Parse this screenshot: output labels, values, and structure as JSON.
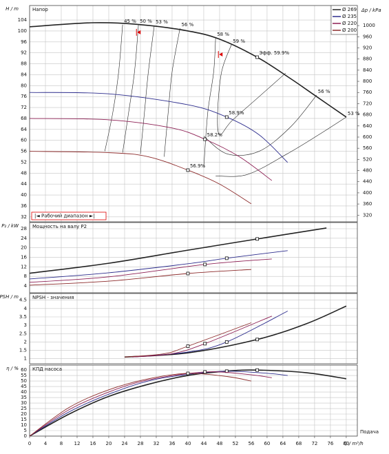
{
  "chart_data": [
    {
      "type": "line",
      "title": "Напор",
      "y_label": "H / m",
      "y2_label": "Δp / kPa",
      "ylim": [
        30.2,
        109.3
      ],
      "yticks": [
        32,
        36,
        40,
        44,
        48,
        52,
        56,
        60,
        64,
        68,
        72,
        76,
        80,
        84,
        88,
        92,
        96,
        100,
        104
      ],
      "y2lim": [
        296,
        1072
      ],
      "y2ticks": [
        320,
        360,
        400,
        440,
        480,
        520,
        560,
        600,
        640,
        680,
        720,
        760,
        800,
        840,
        880,
        920,
        960,
        1000
      ],
      "grid": true,
      "legend": "upper right",
      "series": [
        {
          "name": "Ø 269",
          "color": "#222222",
          "x": [
            0,
            16,
            28,
            40,
            48,
            57.5,
            66,
            72,
            80
          ],
          "values": [
            101.5,
            103,
            102.3,
            100,
            97,
            90.4,
            82.5,
            76.5,
            68.5
          ],
          "point": {
            "x": 57.5,
            "y": 90.4
          },
          "point_label": "Эфф.  59.9%"
        },
        {
          "name": "Ø 235",
          "color": "#2b2b8c",
          "x": [
            0,
            20,
            40,
            49.8,
            58,
            65.2
          ],
          "values": [
            77.5,
            77,
            73,
            68.5,
            62,
            51.9
          ],
          "point": {
            "x": 49.8,
            "y": 68.5
          },
          "point_label": "58.9%"
        },
        {
          "name": "Ø 220",
          "color": "#8c1d52",
          "x": [
            0,
            20,
            36,
            44.3,
            53,
            61.2
          ],
          "values": [
            68,
            67.5,
            64.5,
            60.4,
            54,
            45.3
          ],
          "point": {
            "x": 44.3,
            "y": 60.4
          },
          "point_label": "58.2%"
        },
        {
          "name": "Ø 200",
          "color": "#8c2a2a",
          "x": [
            0,
            20,
            30,
            40,
            48,
            56
          ],
          "values": [
            56,
            55.5,
            54,
            49.1,
            44,
            36.8
          ],
          "point": {
            "x": 40,
            "y": 49.1
          },
          "point_label": "56.9%"
        }
      ],
      "contours": [
        {
          "label": "45 %",
          "x": [
            19,
            21,
            22.5,
            23.5
          ],
          "y": [
            56,
            70,
            85,
            102.3
          ]
        },
        {
          "label": "50 %",
          "x": [
            23.5,
            25,
            26.5,
            27.5
          ],
          "y": [
            55.5,
            70,
            85,
            102.2
          ]
        },
        {
          "label": "53 %",
          "x": [
            28,
            29,
            30,
            31.5
          ],
          "y": [
            55,
            70,
            85,
            102
          ]
        },
        {
          "label": "56 %",
          "x": [
            34,
            35,
            36,
            38
          ],
          "y": [
            54,
            70,
            85,
            101
          ]
        },
        {
          "label": "58 %",
          "x": [
            44,
            45,
            46.5,
            47
          ],
          "y": [
            50,
            70,
            85,
            97.5
          ]
        },
        {
          "label": "59 %",
          "x": [
            64.7,
            58,
            51,
            48,
            47.5,
            48.5,
            51
          ],
          "y": [
            84.6,
            76,
            67,
            62,
            70,
            85,
            95
          ]
        },
        {
          "label": "56 %",
          "x": [
            44,
            50,
            58,
            66,
            72.5
          ],
          "y": [
            61.5,
            55,
            56,
            65,
            76.5
          ]
        },
        {
          "label": "53 %",
          "x": [
            47,
            55,
            65,
            73,
            80
          ],
          "y": [
            47,
            47.5,
            55,
            62,
            68.5
          ]
        }
      ],
      "range_label": "|◄ Рабочий диапазон ►|",
      "range_flags": [
        {
          "x": 27,
          "y": 99.5
        },
        {
          "x": 47.7,
          "y": 91.4
        }
      ]
    },
    {
      "type": "line",
      "title": "Мощность на валу P2",
      "y_label": "P₂ / kW",
      "ylim": [
        1.1,
        30.6
      ],
      "yticks": [
        4,
        8,
        12,
        16,
        20,
        24,
        28
      ],
      "grid": true,
      "series": [
        {
          "color": "#222222",
          "x": [
            0,
            20,
            40,
            57.5,
            75
          ],
          "values": [
            9.3,
            13.5,
            19,
            23.7,
            28.3
          ],
          "point": {
            "x": 57.5,
            "y": 23.7
          }
        },
        {
          "color": "#2b2b8c",
          "x": [
            0,
            20,
            40,
            49.8,
            65.2
          ],
          "values": [
            6.9,
            9.5,
            13.3,
            15.6,
            18.8
          ],
          "point": {
            "x": 49.8,
            "y": 15.6
          }
        },
        {
          "color": "#8c1d52",
          "x": [
            0,
            20,
            44.3,
            61.2
          ],
          "values": [
            5.5,
            7.8,
            13,
            15.3
          ],
          "point": {
            "x": 44.3,
            "y": 13
          }
        },
        {
          "color": "#8c2a2a",
          "x": [
            0,
            20,
            40,
            56
          ],
          "values": [
            4.3,
            6,
            9.2,
            10.9
          ],
          "point": {
            "x": 40,
            "y": 9.2
          }
        }
      ]
    },
    {
      "type": "line",
      "title": "NPSH - значения",
      "y_label": "NPSH / m",
      "ylim": [
        0.7,
        4.9
      ],
      "yticks": [
        1,
        1.5,
        2,
        2.5,
        3,
        3.5,
        4,
        4.5
      ],
      "grid": true,
      "series": [
        {
          "color": "#222222",
          "x": [
            24,
            40,
            57.5,
            70,
            80
          ],
          "values": [
            1.1,
            1.35,
            2.15,
            3.1,
            4.15
          ],
          "point": {
            "x": 57.5,
            "y": 2.15
          }
        },
        {
          "color": "#2b2b8c",
          "x": [
            26,
            40,
            49.8,
            65.2
          ],
          "values": [
            1.1,
            1.4,
            2,
            3.85
          ],
          "point": {
            "x": 49.8,
            "y": 2
          }
        },
        {
          "color": "#8c1d52",
          "x": [
            26,
            36,
            44.3,
            61.2
          ],
          "values": [
            1.1,
            1.3,
            1.9,
            3.55
          ],
          "point": {
            "x": 44.3,
            "y": 1.9
          }
        },
        {
          "color": "#8c2a2a",
          "x": [
            24,
            34,
            40,
            56
          ],
          "values": [
            1.1,
            1.3,
            1.75,
            3.15
          ],
          "point": {
            "x": 40,
            "y": 1.75
          }
        }
      ]
    },
    {
      "type": "line",
      "title": "КПД насоса",
      "y_label": "η / %",
      "x_label": "Q / m³/h",
      "x_caption": "Подача",
      "xlim": [
        0,
        82.8
      ],
      "xticks": [
        0,
        4,
        8,
        12,
        16,
        20,
        24,
        28,
        32,
        36,
        40,
        44,
        48,
        52,
        56,
        60,
        64,
        68,
        72,
        76,
        80
      ],
      "ylim": [
        0,
        64.4
      ],
      "yticks": [
        0,
        5,
        10,
        15,
        20,
        25,
        30,
        35,
        40,
        45,
        50,
        55,
        60
      ],
      "grid": true,
      "series": [
        {
          "color": "#222222",
          "x": [
            0,
            10,
            20,
            30,
            40,
            50,
            57.5,
            70,
            80
          ],
          "values": [
            0,
            20,
            36,
            47,
            55,
            59,
            59.9,
            57.5,
            52
          ],
          "point": {
            "x": 57.5,
            "y": 59.9
          }
        },
        {
          "color": "#2b2b8c",
          "x": [
            0,
            10,
            20,
            30,
            40,
            49.8,
            60,
            65.2
          ],
          "values": [
            0,
            22,
            38,
            50,
            56,
            58.9,
            57,
            55
          ],
          "point": {
            "x": 49.8,
            "y": 58.9
          }
        },
        {
          "color": "#8c1d52",
          "x": [
            0,
            10,
            20,
            30,
            44.3,
            55,
            61.2
          ],
          "values": [
            0,
            24,
            40,
            51,
            58.2,
            56,
            53
          ],
          "point": {
            "x": 44.3,
            "y": 58.2
          }
        },
        {
          "color": "#8c2a2a",
          "x": [
            0,
            10,
            20,
            30,
            40,
            50,
            56
          ],
          "values": [
            0,
            26,
            42,
            52,
            56.9,
            54,
            50
          ],
          "point": {
            "x": 40,
            "y": 56.9
          }
        }
      ]
    }
  ]
}
